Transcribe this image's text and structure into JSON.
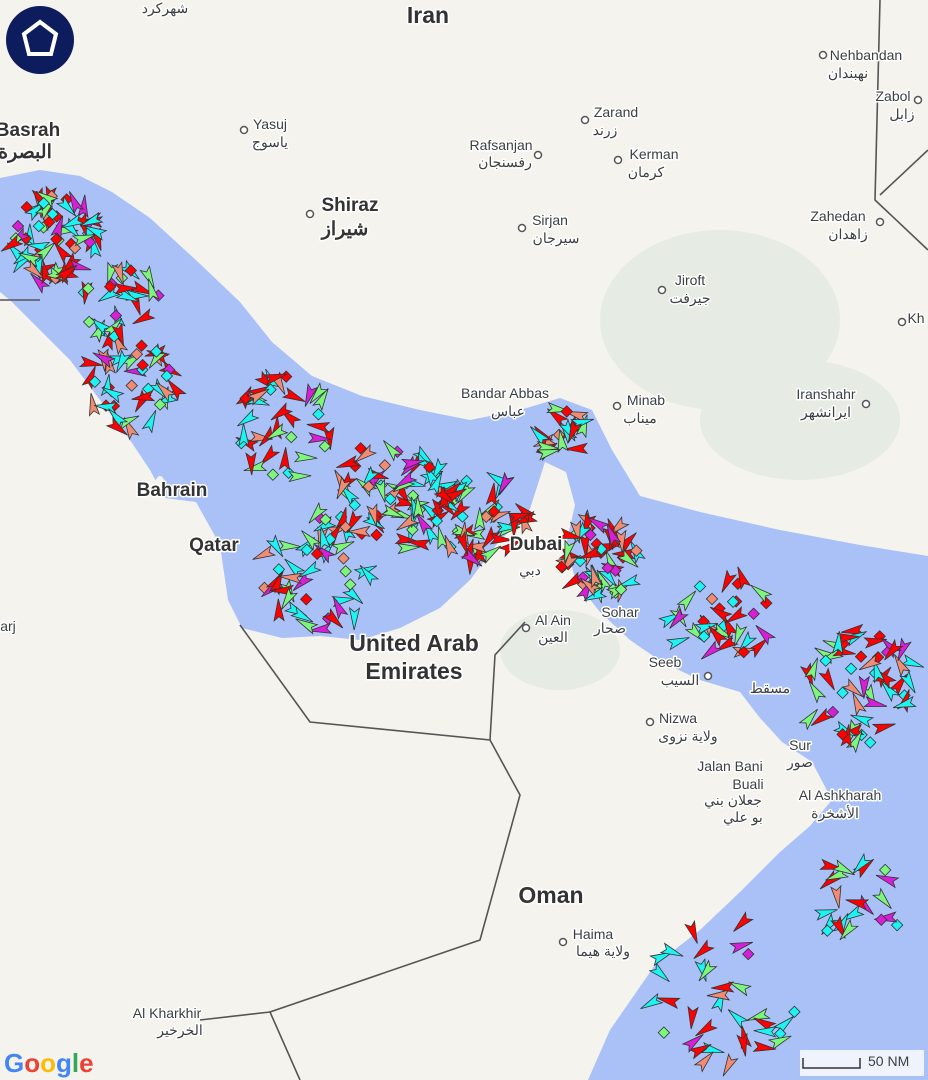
{
  "labels": [
    "شهركرد",
    "Iran",
    "Nehbandan",
    "نهبندان",
    "Zabol",
    "زابل",
    "Basrah",
    "البصرة",
    "Yasuj",
    "یاسوج",
    "Zarand",
    "زرند",
    "Rafsanjan",
    "رفسنجان",
    "Kerman",
    "کرمان",
    "Shiraz",
    "شیراز",
    "Sirjan",
    "سیرجان",
    "Zahedan",
    "زاهدان",
    "Jiroft",
    "جیرفت",
    "Kh",
    "Bandar Abbas",
    "عباس",
    "Minab",
    "میناب",
    "Iranshahr",
    "ایرانشهر",
    "Bahrain",
    "Qatar",
    "Dubai",
    "دبي",
    "Sohar",
    "صحار",
    "Al Ain",
    "العين",
    "United Arab",
    "Emirates",
    "Seeb",
    "السيب",
    "مسقط",
    "Nizwa",
    "ولاية نزوى",
    "Sur",
    "صور",
    "Jalan Bani",
    "Buali",
    "جعلان بني",
    "بو علي",
    "Al Ashkharah",
    "الأشخرة",
    "Oman",
    "Haima",
    "ولاية هيما",
    "Al Kharkhir",
    "الخرخير",
    "arj"
  ],
  "scale": "50 NM",
  "attribution": "Google"
}
